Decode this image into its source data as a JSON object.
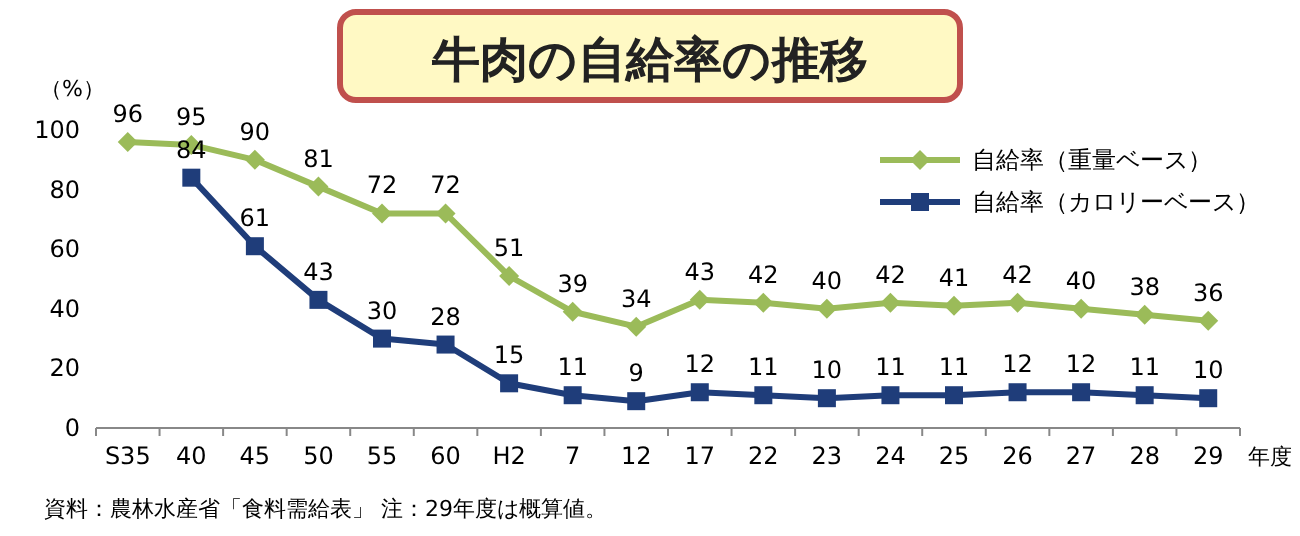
{
  "chart_data": {
    "type": "line",
    "title": "牛肉の自給率の推移",
    "ylabel": "（%）",
    "xlabel": "年度",
    "categories": [
      "S35",
      "40",
      "45",
      "50",
      "55",
      "60",
      "H2",
      "7",
      "12",
      "17",
      "22",
      "23",
      "24",
      "25",
      "26",
      "27",
      "28",
      "29"
    ],
    "series": [
      {
        "name": "自給率（重量ベース）",
        "color": "#9bbb59",
        "marker": "diamond",
        "values": [
          96,
          95,
          90,
          81,
          72,
          72,
          51,
          39,
          34,
          43,
          42,
          40,
          42,
          41,
          42,
          40,
          38,
          36
        ]
      },
      {
        "name": "自給率（カロリーベース）",
        "color": "#1f3d7a",
        "marker": "square",
        "values": [
          null,
          84,
          61,
          43,
          30,
          28,
          15,
          11,
          9,
          12,
          11,
          10,
          11,
          11,
          12,
          12,
          11,
          10
        ]
      }
    ],
    "ylim": [
      0,
      100
    ],
    "yticks": [
      0,
      20,
      40,
      60,
      80,
      100
    ],
    "data_labels": true,
    "legend": "top right",
    "grid": false,
    "annotations": [
      "資料：農林水産省「食料需給表」 注：29年度は概算値。"
    ]
  }
}
